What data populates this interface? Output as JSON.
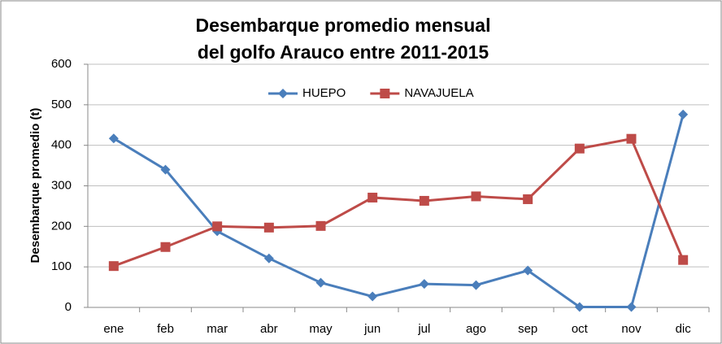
{
  "chart_data": {
    "type": "line",
    "title": [
      "Desembarque promedio mensual",
      "del golfo Arauco entre 2011-2015"
    ],
    "y_label": "Desembarque promedio (t)",
    "categories": [
      "ene",
      "feb",
      "mar",
      "abr",
      "may",
      "jun",
      "jul",
      "ago",
      "sep",
      "oct",
      "nov",
      "dic"
    ],
    "series": [
      {
        "name": "HUEPO",
        "color": "#4a7ebb",
        "marker": "diamond",
        "values": [
          417,
          340,
          188,
          121,
          61,
          27,
          58,
          55,
          91,
          1,
          1,
          476
        ]
      },
      {
        "name": "NAVAJUELA",
        "color": "#be4b48",
        "marker": "square",
        "values": [
          102,
          149,
          200,
          197,
          201,
          271,
          263,
          274,
          267,
          392,
          416,
          117
        ]
      }
    ],
    "ylim": [
      0,
      600
    ],
    "yticks": [
      0,
      100,
      200,
      300,
      400,
      500,
      600
    ],
    "grid": true,
    "legend": "top"
  }
}
